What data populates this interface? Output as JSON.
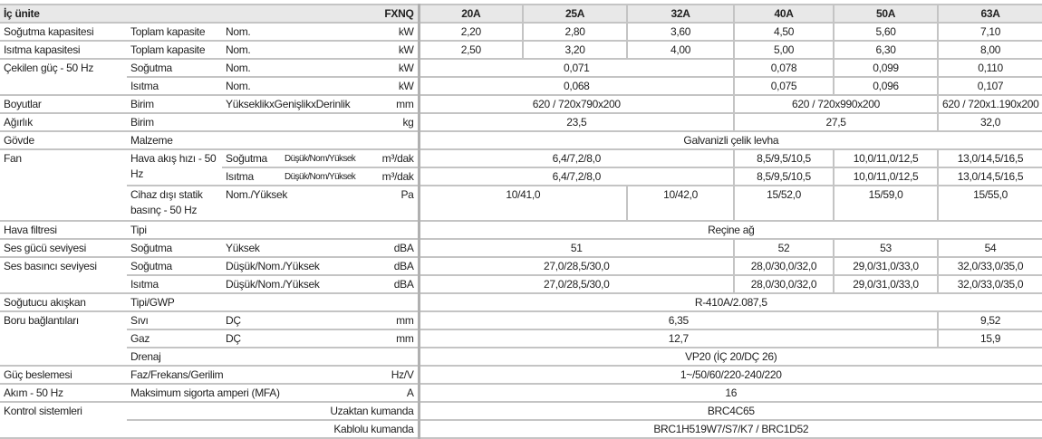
{
  "header": {
    "title": "İç ünite",
    "model": "FXNQ",
    "sizes": [
      "20A",
      "25A",
      "32A",
      "40A",
      "50A",
      "63A"
    ]
  },
  "rows": [
    {
      "cells": [
        "Soğutma kapasitesi",
        "Toplam kapasite",
        "Nom.",
        "kW",
        "2,20",
        "2,80",
        "3,60",
        "4,50",
        "5,60",
        "7,10"
      ]
    },
    {
      "cells": [
        "Isıtma kapasitesi",
        "Toplam kapasite",
        "Nom.",
        "kW",
        "2,50",
        "3,20",
        "4,00",
        "5,00",
        "6,30",
        "8,00"
      ]
    },
    {
      "cells": [
        "Çekilen güç - 50 Hz",
        "Soğutma",
        "Nom.",
        "kW",
        "0,071",
        "0,078",
        "0,099",
        "0,110"
      ]
    },
    {
      "cells": [
        "Isıtma",
        "Nom.",
        "kW",
        "0,068",
        "0,075",
        "0,096",
        "0,107"
      ]
    },
    {
      "cells": [
        "Boyutlar",
        "Birim",
        "YükseklikxGenişlikxDerinlik",
        "mm",
        "620 / 720x790x200",
        "620 / 720x990x200",
        "620 / 720x1.190x200"
      ]
    },
    {
      "cells": [
        "Ağırlık",
        "Birim",
        "",
        "kg",
        "23,5",
        "27,5",
        "32,0"
      ]
    },
    {
      "cells": [
        "Gövde",
        "Malzeme",
        "",
        "",
        "Galvanizli çelik levha"
      ]
    },
    {
      "cells": [
        "Fan",
        "Hava akış hızı - 50 Hz",
        "Soğutma",
        "Düşük/Nom/Yüksek",
        "m³/dak",
        "6,4/7,2/8,0",
        "8,5/9,5/10,5",
        "10,0/11,0/12,5",
        "13,0/14,5/16,5"
      ]
    },
    {
      "cells": [
        "Isıtma",
        "Düşük/Nom/Yüksek",
        "m³/dak",
        "6,4/7,2/8,0",
        "8,5/9,5/10,5",
        "10,0/11,0/12,5",
        "13,0/14,5/16,5"
      ]
    },
    {
      "cells": [
        "Cihaz dışı statik basınç - 50 Hz",
        "Nom./Yüksek",
        "Pa",
        "10/41,0",
        "10/42,0",
        "15/52,0",
        "15/59,0",
        "15/55,0"
      ]
    },
    {
      "cells": [
        "Hava filtresi",
        "Tipi",
        "",
        "",
        "Reçine ağ"
      ]
    },
    {
      "cells": [
        "Ses gücü seviyesi",
        "Soğutma",
        "Yüksek",
        "dBA",
        "51",
        "52",
        "53",
        "54"
      ]
    },
    {
      "cells": [
        "Ses basıncı seviyesi",
        "Soğutma",
        "Düşük/Nom./Yüksek",
        "dBA",
        "27,0/28,5/30,0",
        "28,0/30,0/32,0",
        "29,0/31,0/33,0",
        "32,0/33,0/35,0"
      ]
    },
    {
      "cells": [
        "Isıtma",
        "Düşük/Nom./Yüksek",
        "dBA",
        "27,0/28,5/30,0",
        "28,0/30,0/32,0",
        "29,0/31,0/33,0",
        "32,0/33,0/35,0"
      ]
    },
    {
      "cells": [
        "Soğutucu akışkan",
        "Tipi/GWP",
        "",
        "",
        "R-410A/2.087,5"
      ]
    },
    {
      "cells": [
        "Boru bağlantıları",
        "Sıvı",
        "DÇ",
        "mm",
        "6,35",
        "9,52"
      ]
    },
    {
      "cells": [
        "Gaz",
        "DÇ",
        "mm",
        "12,7",
        "15,9"
      ]
    },
    {
      "cells": [
        "Drenaj",
        "",
        "",
        "VP20 (İÇ 20/DÇ 26)"
      ]
    },
    {
      "cells": [
        "Güç beslemesi",
        "Faz/Frekans/Gerilim",
        "Hz/V",
        "1~/50/60/220-240/220"
      ]
    },
    {
      "cells": [
        "Akım - 50 Hz",
        "Maksimum sigorta amperi (MFA)",
        "A",
        "16"
      ]
    },
    {
      "cells": [
        "Kontrol sistemleri",
        "Uzaktan kumanda",
        "BRC4C65"
      ]
    },
    {
      "cells": [
        "Kablolu kumanda",
        "BRC1H519W7/S7/K7 / BRC1D52"
      ]
    }
  ]
}
